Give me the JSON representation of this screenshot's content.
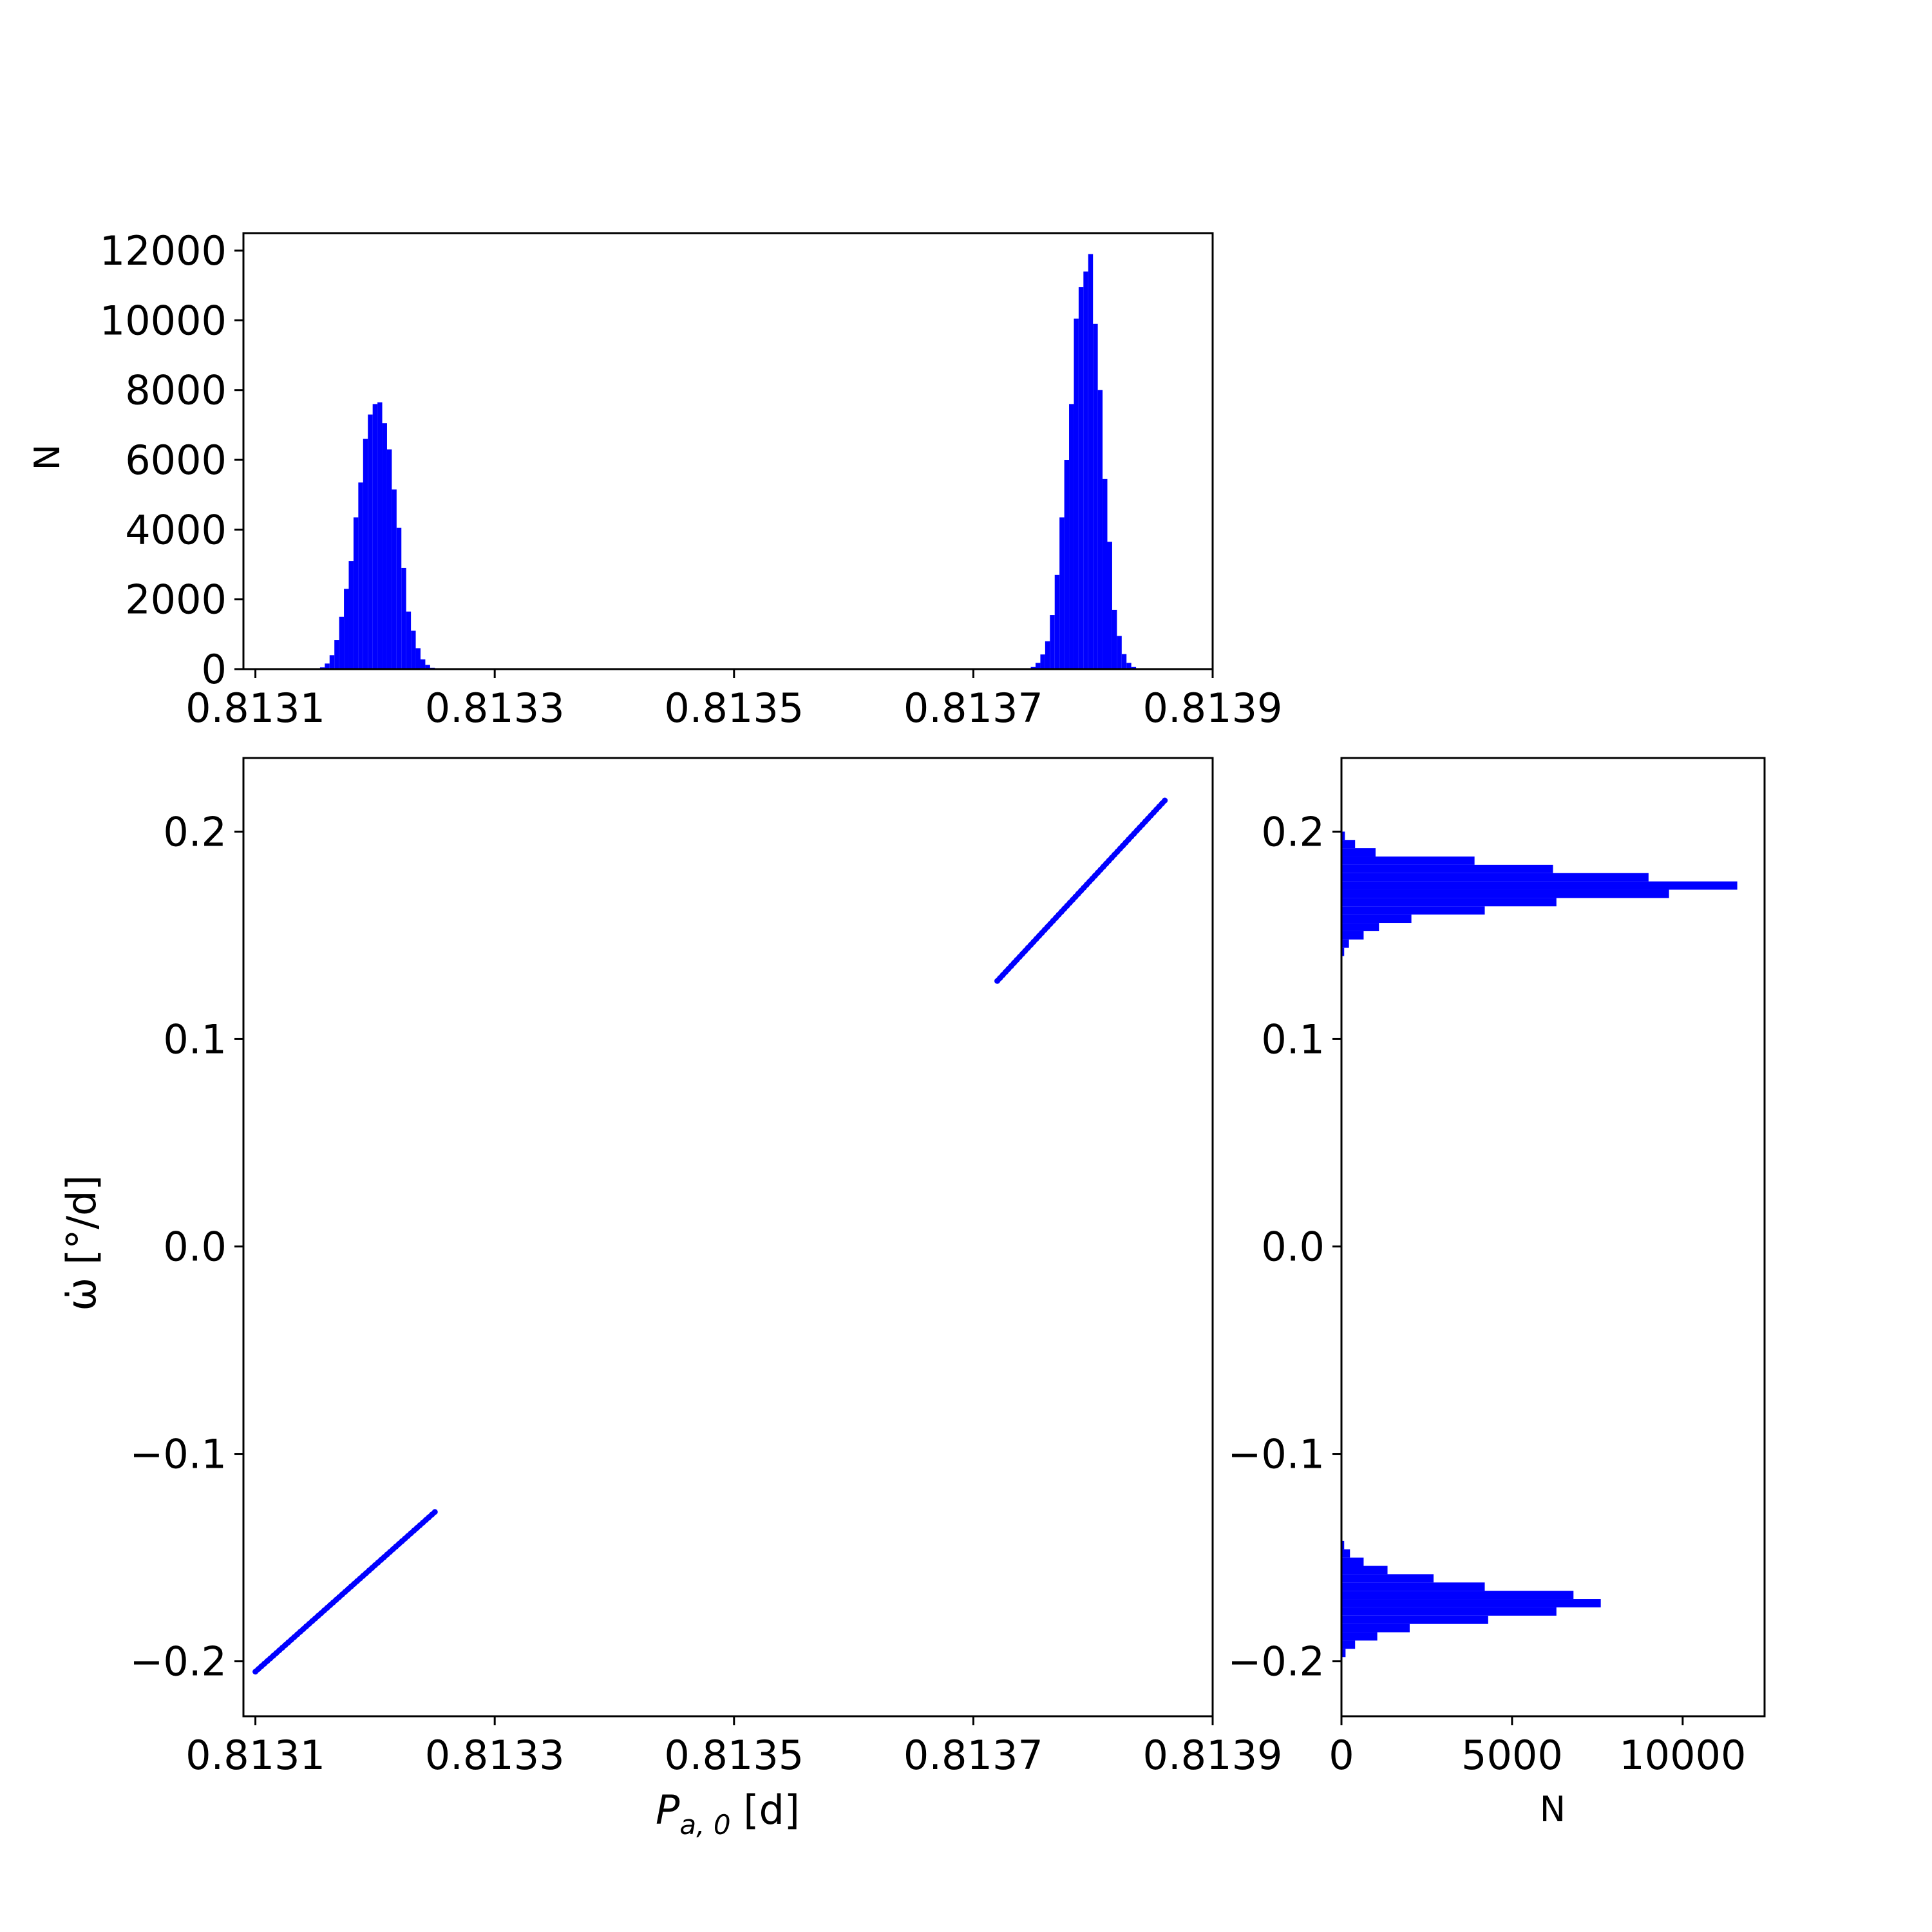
{
  "chart_data": [
    {
      "id": "top-histogram",
      "type": "bar",
      "title": "",
      "xlabel": "",
      "ylabel": "N",
      "xlim": [
        0.81309,
        0.8139
      ],
      "ylim": [
        0,
        12500
      ],
      "xticks": [
        0.8131,
        0.8133,
        0.8135,
        0.8137,
        0.8139
      ],
      "xtick_labels": [
        "0.8131",
        "0.8133",
        "0.8135",
        "0.8137",
        "0.8139"
      ],
      "yticks": [
        0,
        2000,
        4000,
        6000,
        8000,
        10000,
        12000
      ],
      "ytick_labels": [
        "0",
        "2000",
        "4000",
        "6000",
        "8000",
        "10000",
        "12000"
      ],
      "color": "#0000ff",
      "grid": false,
      "bin_width": 4e-06,
      "bins": [
        {
          "x": 0.813152,
          "n": 8
        },
        {
          "x": 0.813156,
          "n": 50
        },
        {
          "x": 0.81316,
          "n": 160
        },
        {
          "x": 0.813164,
          "n": 400
        },
        {
          "x": 0.813168,
          "n": 830
        },
        {
          "x": 0.813172,
          "n": 1500
        },
        {
          "x": 0.813176,
          "n": 2300
        },
        {
          "x": 0.81318,
          "n": 3100
        },
        {
          "x": 0.813184,
          "n": 4350
        },
        {
          "x": 0.813188,
          "n": 5350
        },
        {
          "x": 0.813192,
          "n": 6600
        },
        {
          "x": 0.813196,
          "n": 7300
        },
        {
          "x": 0.8132,
          "n": 7600
        },
        {
          "x": 0.813204,
          "n": 7650
        },
        {
          "x": 0.813208,
          "n": 7050
        },
        {
          "x": 0.813212,
          "n": 6300
        },
        {
          "x": 0.813216,
          "n": 5150
        },
        {
          "x": 0.81322,
          "n": 4050
        },
        {
          "x": 0.813224,
          "n": 2900
        },
        {
          "x": 0.813228,
          "n": 1650
        },
        {
          "x": 0.813232,
          "n": 1100
        },
        {
          "x": 0.813236,
          "n": 600
        },
        {
          "x": 0.81324,
          "n": 280
        },
        {
          "x": 0.813244,
          "n": 120
        },
        {
          "x": 0.813248,
          "n": 40
        },
        {
          "x": 0.813252,
          "n": 10
        },
        {
          "x": 0.813746,
          "n": 15
        },
        {
          "x": 0.81375,
          "n": 60
        },
        {
          "x": 0.813754,
          "n": 180
        },
        {
          "x": 0.813758,
          "n": 420
        },
        {
          "x": 0.813762,
          "n": 800
        },
        {
          "x": 0.813766,
          "n": 1550
        },
        {
          "x": 0.81377,
          "n": 2700
        },
        {
          "x": 0.813774,
          "n": 4350
        },
        {
          "x": 0.813778,
          "n": 6000
        },
        {
          "x": 0.813782,
          "n": 7600
        },
        {
          "x": 0.813786,
          "n": 10050
        },
        {
          "x": 0.81379,
          "n": 10950
        },
        {
          "x": 0.813794,
          "n": 11400
        },
        {
          "x": 0.813798,
          "n": 11900
        },
        {
          "x": 0.813802,
          "n": 9900
        },
        {
          "x": 0.813806,
          "n": 8000
        },
        {
          "x": 0.81381,
          "n": 5450
        },
        {
          "x": 0.813814,
          "n": 3650
        },
        {
          "x": 0.813818,
          "n": 1700
        },
        {
          "x": 0.813822,
          "n": 950
        },
        {
          "x": 0.813826,
          "n": 430
        },
        {
          "x": 0.81383,
          "n": 180
        },
        {
          "x": 0.813834,
          "n": 60
        },
        {
          "x": 0.813838,
          "n": 20
        }
      ]
    },
    {
      "id": "main-scatter",
      "type": "scatter",
      "title": "",
      "xlabel": "P_{a,0} [d]",
      "xlabel_main": "P",
      "xlabel_sub": "a, 0",
      "xlabel_unit": " [d]",
      "ylabel": "ω̇ [°/d]",
      "xlim": [
        0.81309,
        0.8139
      ],
      "ylim": [
        -0.2265,
        0.2355
      ],
      "xticks": [
        0.8131,
        0.8133,
        0.8135,
        0.8137,
        0.8139
      ],
      "xtick_labels": [
        "0.8131",
        "0.8133",
        "0.8135",
        "0.8137",
        "0.8139"
      ],
      "yticks": [
        -0.2,
        -0.1,
        0.0,
        0.1,
        0.2
      ],
      "ytick_labels": [
        "−0.2",
        "−0.1",
        "0.0",
        "0.1",
        "0.2"
      ],
      "color": "#0000ff",
      "grid": false,
      "series": [
        {
          "x": [
            0.8131,
            0.81325
          ],
          "y": [
            -0.205,
            -0.128
          ]
        },
        {
          "x": [
            0.81372,
            0.81386
          ],
          "y": [
            0.128,
            0.215
          ]
        }
      ]
    },
    {
      "id": "right-histogram",
      "type": "bar",
      "orientation": "horizontal",
      "title": "",
      "xlabel": "N",
      "ylabel": "",
      "xlim": [
        0,
        12400
      ],
      "ylim": [
        -0.2265,
        0.2355
      ],
      "xticks": [
        0,
        5000,
        10000
      ],
      "xtick_labels": [
        "0",
        "5000",
        "10000"
      ],
      "yticks": [
        -0.2,
        -0.1,
        0.0,
        0.1,
        0.2
      ],
      "ytick_labels": [
        "−0.2",
        "−0.1",
        "0.0",
        "0.1",
        "0.2"
      ],
      "color": "#0000ff",
      "grid": false,
      "bin_width": 0.004,
      "bins": [
        {
          "y": -0.196,
          "n": 120
        },
        {
          "y": -0.192,
          "n": 400
        },
        {
          "y": -0.188,
          "n": 1050
        },
        {
          "y": -0.184,
          "n": 2000
        },
        {
          "y": -0.18,
          "n": 4300
        },
        {
          "y": -0.176,
          "n": 6300
        },
        {
          "y": -0.172,
          "n": 7600
        },
        {
          "y": -0.168,
          "n": 6800
        },
        {
          "y": -0.164,
          "n": 4200
        },
        {
          "y": -0.16,
          "n": 2700
        },
        {
          "y": -0.156,
          "n": 1350
        },
        {
          "y": -0.152,
          "n": 650
        },
        {
          "y": -0.148,
          "n": 250
        },
        {
          "y": -0.144,
          "n": 80
        },
        {
          "y": 0.142,
          "n": 80
        },
        {
          "y": 0.146,
          "n": 220
        },
        {
          "y": 0.15,
          "n": 650
        },
        {
          "y": 0.154,
          "n": 1100
        },
        {
          "y": 0.158,
          "n": 2050
        },
        {
          "y": 0.162,
          "n": 4200
        },
        {
          "y": 0.166,
          "n": 6300
        },
        {
          "y": 0.17,
          "n": 9600
        },
        {
          "y": 0.174,
          "n": 11600
        },
        {
          "y": 0.178,
          "n": 9000
        },
        {
          "y": 0.182,
          "n": 6200
        },
        {
          "y": 0.186,
          "n": 3900
        },
        {
          "y": 0.19,
          "n": 1000
        },
        {
          "y": 0.194,
          "n": 400
        },
        {
          "y": 0.198,
          "n": 100
        }
      ]
    }
  ]
}
